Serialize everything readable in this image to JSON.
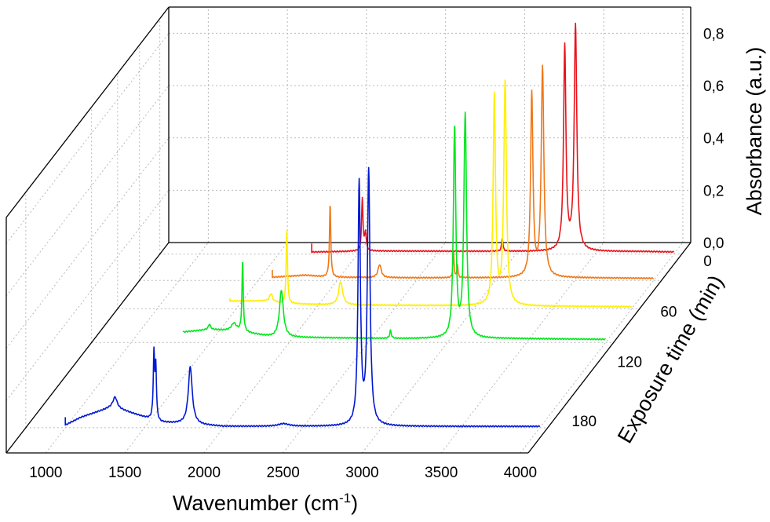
{
  "chart_data": {
    "type": "line",
    "subtype": "3d-waterfall",
    "xlabel": "Wavenumber (cm",
    "xlabel_sup": "-1",
    "xlabel_close": ")",
    "ylabel": "Absorbance (a.u.)",
    "zlabel": "Exposure time (min)",
    "x_ticks": [
      "1000",
      "1500",
      "2000",
      "2500",
      "3000",
      "3500",
      "4000"
    ],
    "y_ticks": [
      "0,0",
      "0,2",
      "0,4",
      "0,6",
      "0,8"
    ],
    "z_ticks": [
      "0",
      "60",
      "120",
      "180"
    ],
    "xlim": [
      750,
      4050
    ],
    "ylim": [
      0,
      0.9
    ],
    "series": [
      {
        "color": "#e8141c",
        "x_start": 1710,
        "baseline": [
          [
            1710,
            0.008
          ],
          [
            1900,
            0.01
          ],
          [
            2050,
            0.012
          ],
          [
            3300,
            0.01
          ],
          [
            3800,
            0.01
          ],
          [
            4000,
            0.008
          ]
        ],
        "peaks": [
          [
            2030,
            0.2,
            5
          ],
          [
            2050,
            0.07,
            6
          ],
          [
            2915,
            0.05,
            5
          ],
          [
            3310,
            0.78,
            9
          ],
          [
            3378,
            0.86,
            10
          ]
        ]
      },
      {
        "color": "#f07818",
        "x_start": 1590,
        "baseline": [
          [
            1590,
            0.012
          ],
          [
            1800,
            0.02
          ],
          [
            1950,
            0.012
          ],
          [
            2500,
            0.01
          ],
          [
            3500,
            0.01
          ],
          [
            4000,
            0.008
          ]
        ],
        "peaks": [
          [
            1955,
            0.28,
            5
          ],
          [
            2268,
            0.05,
            12
          ],
          [
            2735,
            0.1,
            4
          ],
          [
            2760,
            0.05,
            4
          ],
          [
            3230,
            0.7,
            9
          ],
          [
            3298,
            0.8,
            10
          ]
        ]
      },
      {
        "color": "#ffef00",
        "x_start": 1460,
        "baseline": [
          [
            1460,
            0.03
          ],
          [
            1700,
            0.03
          ],
          [
            1800,
            0.02
          ],
          [
            2100,
            0.015
          ],
          [
            3400,
            0.01
          ],
          [
            4000,
            0.008
          ]
        ],
        "peaks": [
          [
            1720,
            0.03,
            10
          ],
          [
            1820,
            0.28,
            5
          ],
          [
            2160,
            0.09,
            15
          ],
          [
            3132,
            0.8,
            9
          ],
          [
            3200,
            0.85,
            10
          ]
        ]
      },
      {
        "color": "#00e71d",
        "x_start": 1330,
        "baseline": [
          [
            1330,
            0.04
          ],
          [
            1500,
            0.05
          ],
          [
            1700,
            0.04
          ],
          [
            1900,
            0.02
          ],
          [
            2700,
            0.015
          ],
          [
            3400,
            0.015
          ],
          [
            4000,
            0.012
          ]
        ],
        "peaks": [
          [
            1495,
            0.02,
            8
          ],
          [
            1650,
            0.03,
            20
          ],
          [
            1705,
            0.27,
            5
          ],
          [
            1950,
            0.18,
            15
          ],
          [
            2640,
            0.03,
            6
          ],
          [
            3045,
            0.8,
            9
          ],
          [
            3112,
            0.85,
            10
          ]
        ]
      },
      {
        "color": "#0018d2",
        "x_start": 1000,
        "baseline": [
          [
            1000,
            0.01
          ],
          [
            1100,
            0.04
          ],
          [
            1200,
            0.06
          ],
          [
            1300,
            0.08
          ],
          [
            1400,
            0.06
          ],
          [
            1500,
            0.04
          ],
          [
            1600,
            0.02
          ],
          [
            2000,
            0.005
          ],
          [
            4000,
            0.005
          ]
        ],
        "peaks": [
          [
            1315,
            0.04,
            15
          ],
          [
            1560,
            0.25,
            5
          ],
          [
            1572,
            0.2,
            5
          ],
          [
            1790,
            0.22,
            15
          ],
          [
            2380,
            0.01,
            40
          ],
          [
            2858,
            0.92,
            9
          ],
          [
            2918,
            0.97,
            10
          ]
        ]
      }
    ]
  }
}
